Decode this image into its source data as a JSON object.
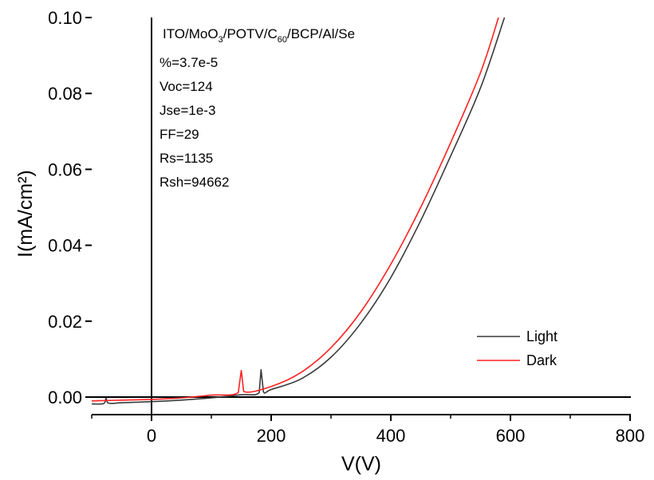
{
  "chart_data": {
    "type": "line",
    "xlabel": "V(V)",
    "ylabel": "I(mA/cm²)",
    "xlim": [
      -100,
      800
    ],
    "ylim": [
      -0.003,
      0.1
    ],
    "x_ticks": [
      "0",
      "200",
      "400",
      "600",
      "800"
    ],
    "y_ticks": [
      "0.00",
      "0.02",
      "0.04",
      "0.06",
      "0.08",
      "0.10"
    ],
    "annotations": {
      "device": "ITO/MoO3/POTV/C60/BCP/Al/Se",
      "lines": [
        "%=3.7e-5",
        "Voc=124",
        "Jse=1e-3",
        "FF=29",
        "Rs=1135",
        "Rsh=94662"
      ]
    },
    "legend_position": "bottom-right",
    "series": [
      {
        "name": "Light",
        "color": "#3a3a3a",
        "points": [
          [
            -100,
            -0.0018
          ],
          [
            -80,
            -0.0017
          ],
          [
            -76,
            -0.0003
          ],
          [
            -72,
            -0.0016
          ],
          [
            -50,
            -0.0015
          ],
          [
            0,
            -0.0012
          ],
          [
            50,
            -0.0008
          ],
          [
            100,
            -0.0002
          ],
          [
            150,
            0.0006
          ],
          [
            180,
            0.0012
          ],
          [
            183,
            0.0072
          ],
          [
            187,
            0.0014
          ],
          [
            200,
            0.002
          ],
          [
            250,
            0.0048
          ],
          [
            300,
            0.0105
          ],
          [
            350,
            0.0195
          ],
          [
            400,
            0.0315
          ],
          [
            450,
            0.0465
          ],
          [
            500,
            0.0635
          ],
          [
            550,
            0.0815
          ],
          [
            590,
            0.1
          ]
        ]
      },
      {
        "name": "Dark",
        "color": "#ff2020",
        "points": [
          [
            -100,
            -0.001
          ],
          [
            0,
            -0.0006
          ],
          [
            50,
            -0.0002
          ],
          [
            100,
            0.0005
          ],
          [
            145,
            0.0012
          ],
          [
            150,
            0.007
          ],
          [
            154,
            0.0015
          ],
          [
            200,
            0.0028
          ],
          [
            250,
            0.0065
          ],
          [
            300,
            0.013
          ],
          [
            350,
            0.0225
          ],
          [
            400,
            0.035
          ],
          [
            450,
            0.05
          ],
          [
            500,
            0.067
          ],
          [
            550,
            0.0855
          ],
          [
            580,
            0.1
          ]
        ]
      }
    ]
  }
}
